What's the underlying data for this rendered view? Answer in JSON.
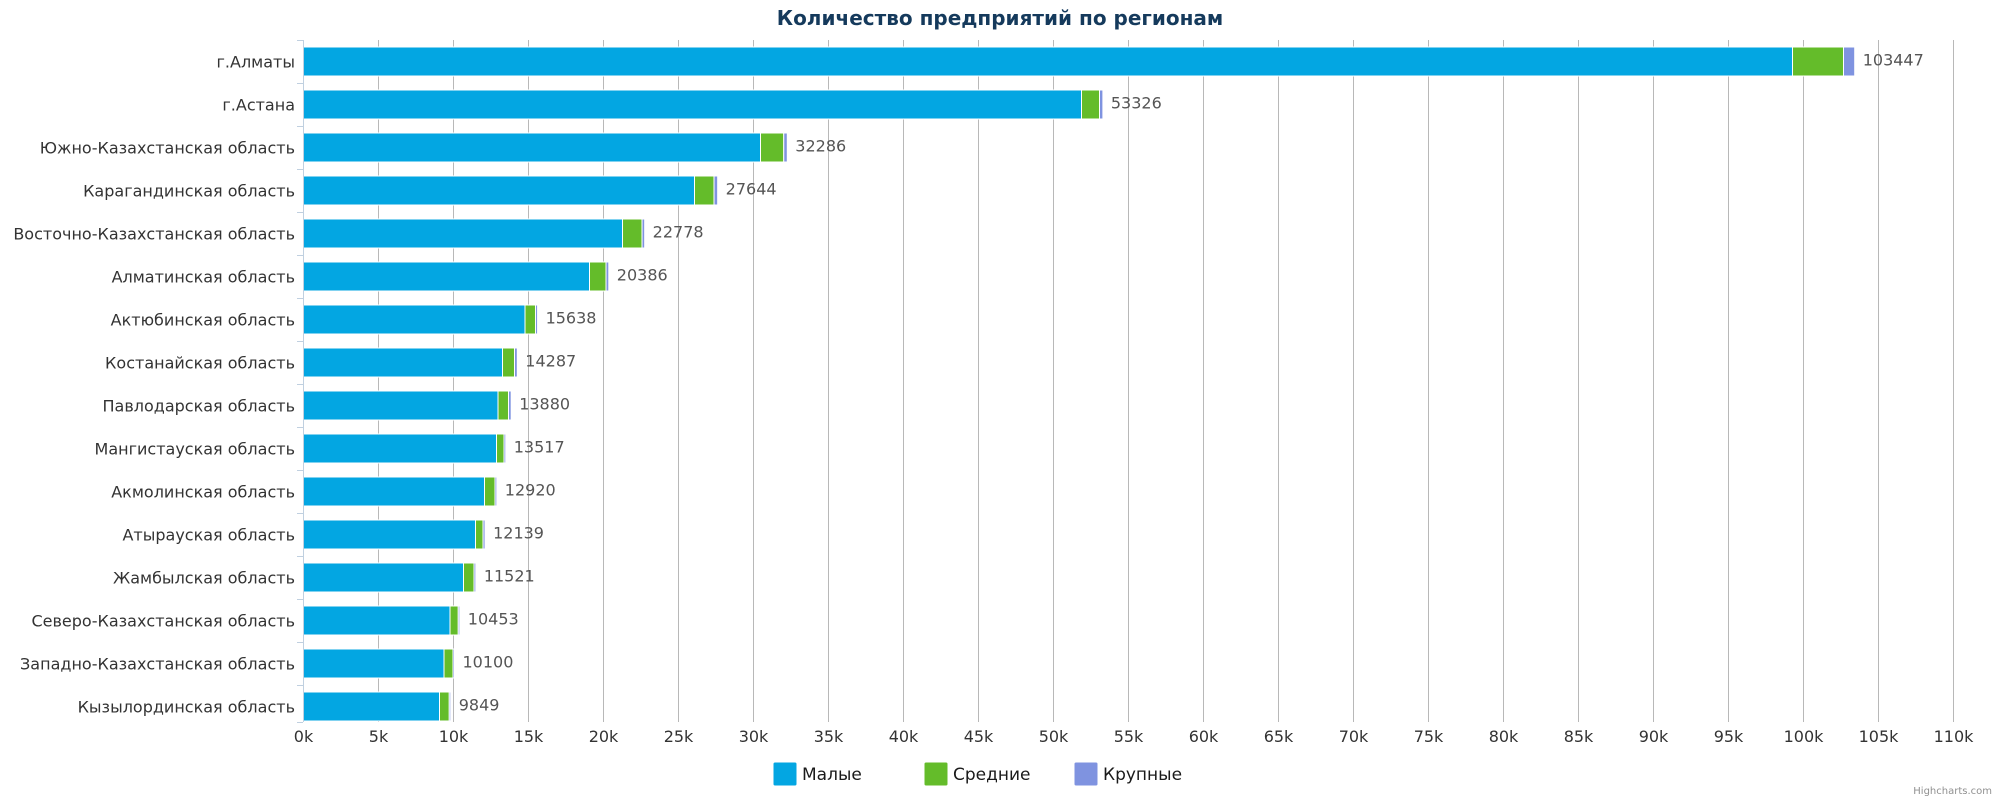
{
  "chart_data": {
    "type": "bar",
    "orientation": "horizontal",
    "stacked": true,
    "title": "Количество предприятий по регионам",
    "categories": [
      "г.Алматы",
      "г.Астана",
      "Южно-Казахстанская область",
      "Карагандинская область",
      "Восточно-Казахстанская область",
      "Алматинская область",
      "Актюбинская область",
      "Костанайская область",
      "Павлодарская область",
      "Мангистауская область",
      "Акмолинская область",
      "Атырауская область",
      "Жамбылская область",
      "Северо-Казахстанская область",
      "Западно-Казахстанская область",
      "Кызылординская область"
    ],
    "series": [
      {
        "name": "Малые",
        "color": "#03a6e2",
        "values": [
          99300,
          51900,
          30500,
          26100,
          21300,
          19100,
          14800,
          13300,
          13000,
          12900,
          12100,
          11500,
          10700,
          9800,
          9400,
          9100
        ]
      },
      {
        "name": "Средние",
        "color": "#64bc2a",
        "values": [
          3400,
          1200,
          1550,
          1300,
          1300,
          1100,
          700,
          800,
          700,
          500,
          700,
          500,
          700,
          550,
          600,
          650
        ]
      },
      {
        "name": "Крупные",
        "color": "#7f93e0",
        "values": [
          747,
          226,
          236,
          244,
          178,
          186,
          138,
          187,
          180,
          117,
          120,
          139,
          121,
          103,
          100,
          99
        ]
      }
    ],
    "totals": [
      "103447",
      "53326",
      "32286",
      "27644",
      "22778",
      "20386",
      "15638",
      "14287",
      "13880",
      "13517",
      "12920",
      "12139",
      "11521",
      "10453",
      "10100",
      "9849"
    ],
    "x_ticks": [
      "0k",
      "5k",
      "10k",
      "15k",
      "20k",
      "25k",
      "30k",
      "35k",
      "40k",
      "45k",
      "50k",
      "55k",
      "60k",
      "65k",
      "70k",
      "75k",
      "80k",
      "85k",
      "90k",
      "95k",
      "100k",
      "105k",
      "110k"
    ],
    "xlim": [
      0,
      110000
    ],
    "grid": true,
    "legend_position": "bottom-center",
    "credit": "Highcharts.com"
  }
}
